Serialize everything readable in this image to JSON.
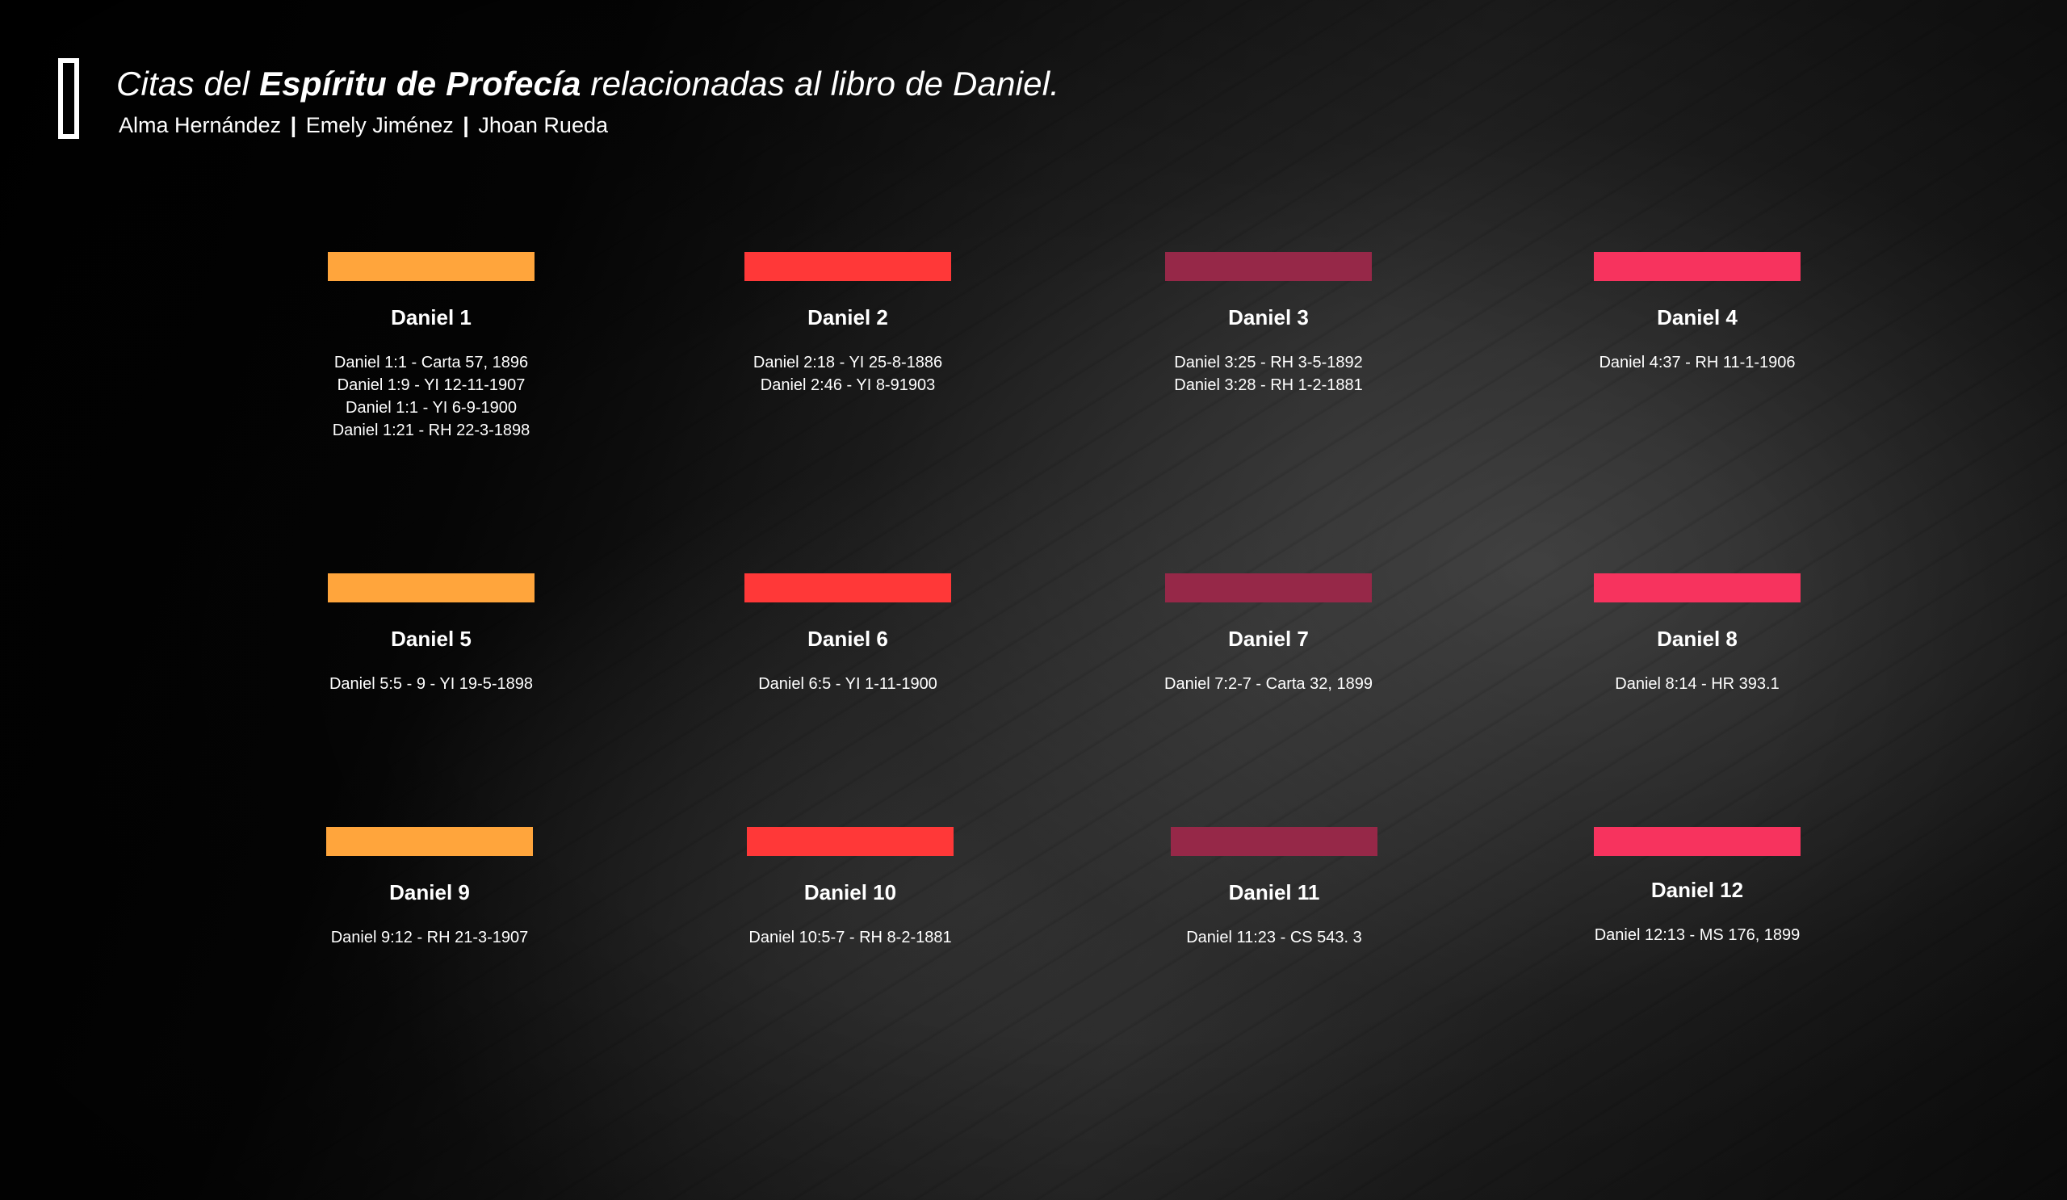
{
  "header": {
    "title_prefix": "Citas del ",
    "title_bold": "Espíritu de Profecía",
    "title_suffix": " relacionadas al libro de Daniel.",
    "authors": [
      "Alma Hernández",
      "Emely Jiménez",
      "Jhoan Rueda"
    ],
    "author_separator": "|"
  },
  "colors": {
    "orange": "#FFA53C",
    "red": "#FF3838",
    "maroon": "#962848",
    "pink": "#F7335E"
  },
  "cards": [
    {
      "title": "Daniel 1",
      "quotes": [
        "Daniel 1:1 - Carta 57, 1896",
        "Daniel 1:9 - YI 12-11-1907",
        "Daniel 1:1 - YI 6-9-1900",
        "Daniel 1:21 - RH 22-3-1898"
      ]
    },
    {
      "title": "Daniel 2",
      "quotes": [
        "Daniel 2:18 - YI 25-8-1886",
        "Daniel 2:46 - YI 8-91903"
      ]
    },
    {
      "title": "Daniel 3",
      "quotes": [
        "Daniel 3:25 - RH 3-5-1892",
        "Daniel 3:28 - RH 1-2-1881"
      ]
    },
    {
      "title": "Daniel 4",
      "quotes": [
        "Daniel 4:37 - RH 11-1-1906"
      ]
    },
    {
      "title": "Daniel 5",
      "quotes": [
        "Daniel 5:5 - 9 - YI 19-5-1898"
      ]
    },
    {
      "title": "Daniel 6",
      "quotes": [
        "Daniel 6:5 - YI 1-11-1900"
      ]
    },
    {
      "title": "Daniel 7",
      "quotes": [
        "Daniel 7:2-7 - Carta 32, 1899"
      ]
    },
    {
      "title": "Daniel 8",
      "quotes": [
        "Daniel 8:14 - HR 393.1"
      ]
    },
    {
      "title": "Daniel 9",
      "quotes": [
        "Daniel 9:12 - RH 21-3-1907"
      ]
    },
    {
      "title": "Daniel 10",
      "quotes": [
        "Daniel 10:5-7 - RH 8-2-1881"
      ]
    },
    {
      "title": "Daniel 11",
      "quotes": [
        "Daniel 11:23 - CS 543. 3"
      ]
    },
    {
      "title": "Daniel 12",
      "quotes": [
        "Daniel 12:13 - MS 176, 1899"
      ]
    }
  ]
}
